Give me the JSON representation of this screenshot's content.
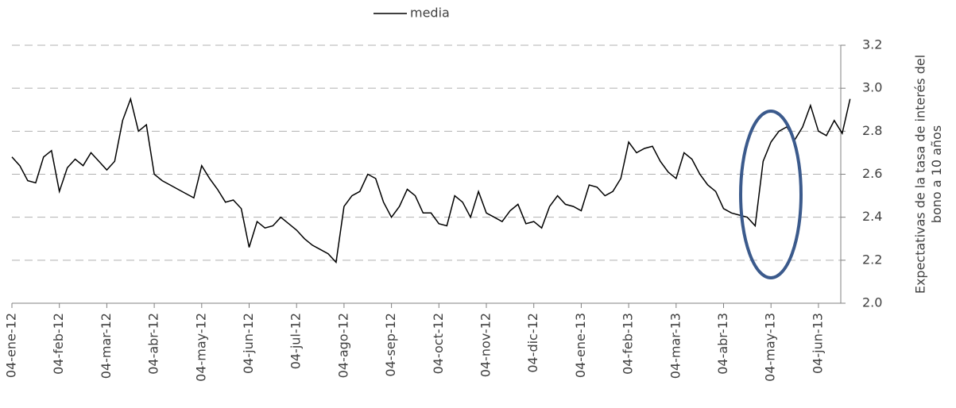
{
  "chart_data": {
    "type": "line",
    "ylabel": [
      "Expectativas de la tasa de interés del",
      "bono a 10 años"
    ],
    "xticks": [
      "04-ene-12",
      "04-feb-12",
      "04-mar-12",
      "04-abr-12",
      "04-may-12",
      "04-jun-12",
      "04-jul-12",
      "04-ago-12",
      "04-sep-12",
      "04-oct-12",
      "04-nov-12",
      "04-dic-12",
      "04-ene-13",
      "04-feb-13",
      "04-mar-13",
      "04-abr-13",
      "04-may-13",
      "04-jun-13"
    ],
    "ylim": [
      2.0,
      3.2
    ],
    "yticks": [
      {
        "value": 2.0,
        "label": "2.0"
      },
      2.2,
      2.4,
      2.6,
      2.8,
      {
        "value": 3.0,
        "label": "3.0"
      },
      3.2
    ],
    "grid": true,
    "legend": "top",
    "series": [
      {
        "name": "media",
        "color": "#000000",
        "values": [
          2.68,
          2.64,
          2.57,
          2.56,
          2.68,
          2.71,
          2.52,
          2.63,
          2.67,
          2.64,
          2.7,
          2.66,
          2.62,
          2.66,
          2.85,
          2.95,
          2.8,
          2.83,
          2.6,
          2.57,
          2.55,
          2.53,
          2.51,
          2.49,
          2.64,
          2.58,
          2.53,
          2.47,
          2.48,
          2.44,
          2.26,
          2.38,
          2.35,
          2.36,
          2.4,
          2.37,
          2.34,
          2.3,
          2.27,
          2.25,
          2.23,
          2.19,
          2.45,
          2.5,
          2.52,
          2.6,
          2.58,
          2.47,
          2.4,
          2.45,
          2.53,
          2.5,
          2.42,
          2.42,
          2.37,
          2.36,
          2.5,
          2.47,
          2.4,
          2.52,
          2.42,
          2.4,
          2.38,
          2.43,
          2.46,
          2.37,
          2.38,
          2.35,
          2.45,
          2.5,
          2.46,
          2.45,
          2.43,
          2.55,
          2.54,
          2.5,
          2.52,
          2.58,
          2.75,
          2.7,
          2.72,
          2.73,
          2.66,
          2.61,
          2.58,
          2.7,
          2.67,
          2.6,
          2.55,
          2.52,
          2.44,
          2.42,
          2.41,
          2.4,
          2.36,
          2.66,
          2.75,
          2.8,
          2.82,
          2.76,
          2.82,
          2.92,
          2.8,
          2.78,
          2.85,
          2.79,
          2.95
        ]
      }
    ]
  }
}
